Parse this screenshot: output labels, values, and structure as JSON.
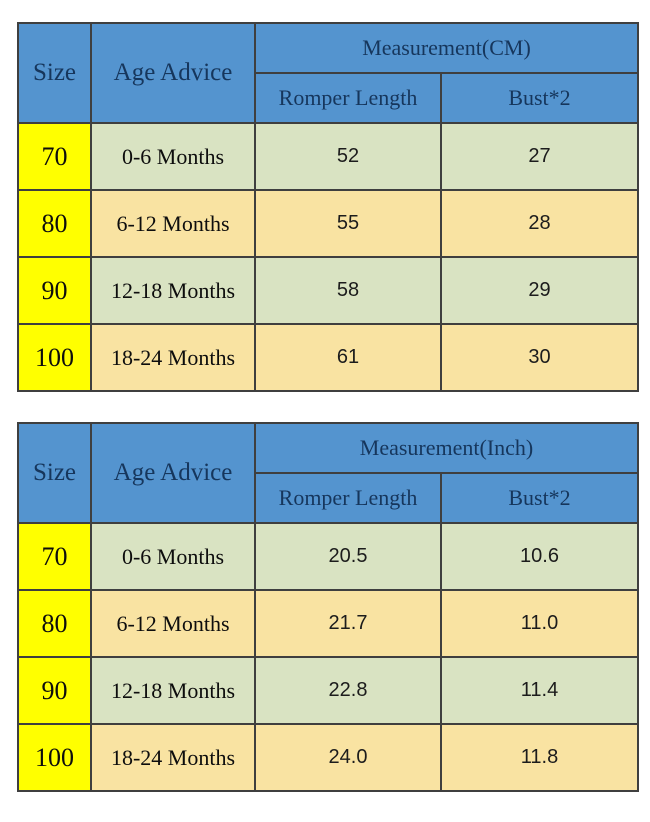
{
  "colors": {
    "page_bg": "#ffffff",
    "header_blue": "#5494CF",
    "header_text": "#16365C",
    "row_green": "#D9E3C2",
    "row_tan": "#F9E3A2",
    "size_yellow": "#FFFF00",
    "grid_border": "#3f3f3f",
    "body_text": "#141414"
  },
  "chart_data": [
    {
      "type": "table",
      "title": "Measurement(CM)",
      "columns": [
        "Size",
        "Age Advice",
        "Romper Length",
        "Bust*2"
      ],
      "rows": [
        [
          "70",
          "0-6 Months",
          "52",
          "27"
        ],
        [
          "80",
          "6-12 Months",
          "55",
          "28"
        ],
        [
          "90",
          "12-18 Months",
          "58",
          "29"
        ],
        [
          "100",
          "18-24 Months",
          "61",
          "30"
        ]
      ]
    },
    {
      "type": "table",
      "title": "Measurement(Inch)",
      "columns": [
        "Size",
        "Age Advice",
        "Romper Length",
        "Bust*2"
      ],
      "rows": [
        [
          "70",
          "0-6 Months",
          "20.5",
          "10.6"
        ],
        [
          "80",
          "6-12 Months",
          "21.7",
          "11.0"
        ],
        [
          "90",
          "12-18 Months",
          "22.8",
          "11.4"
        ],
        [
          "100",
          "18-24 Months",
          "24.0",
          "11.8"
        ]
      ]
    }
  ]
}
